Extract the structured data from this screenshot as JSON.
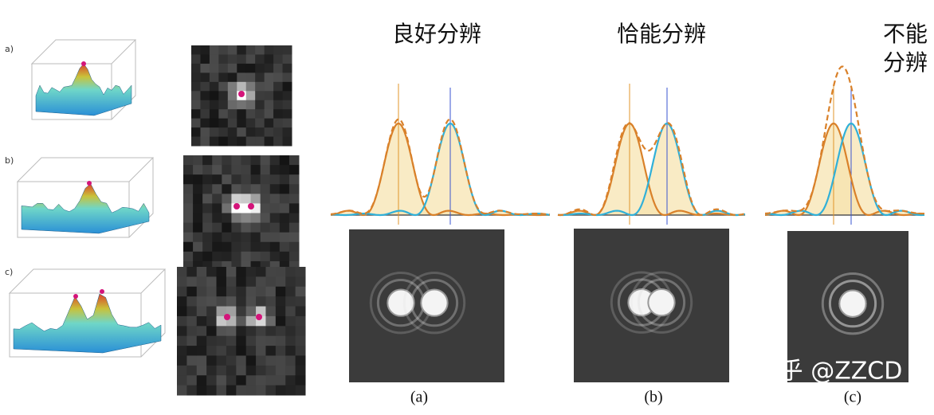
{
  "left_panels": {
    "labels": [
      "a)",
      "b)",
      "c)"
    ]
  },
  "profiles": [
    {
      "title": "良好分辨",
      "caption": "(a)"
    },
    {
      "title_lines": [
        "不能",
        "分辨"
      ],
      "caption": "(c)"
    },
    {
      "title": "恰能分辨",
      "caption": "(b)"
    }
  ],
  "watermark": "知乎 @ZZCD"
}
